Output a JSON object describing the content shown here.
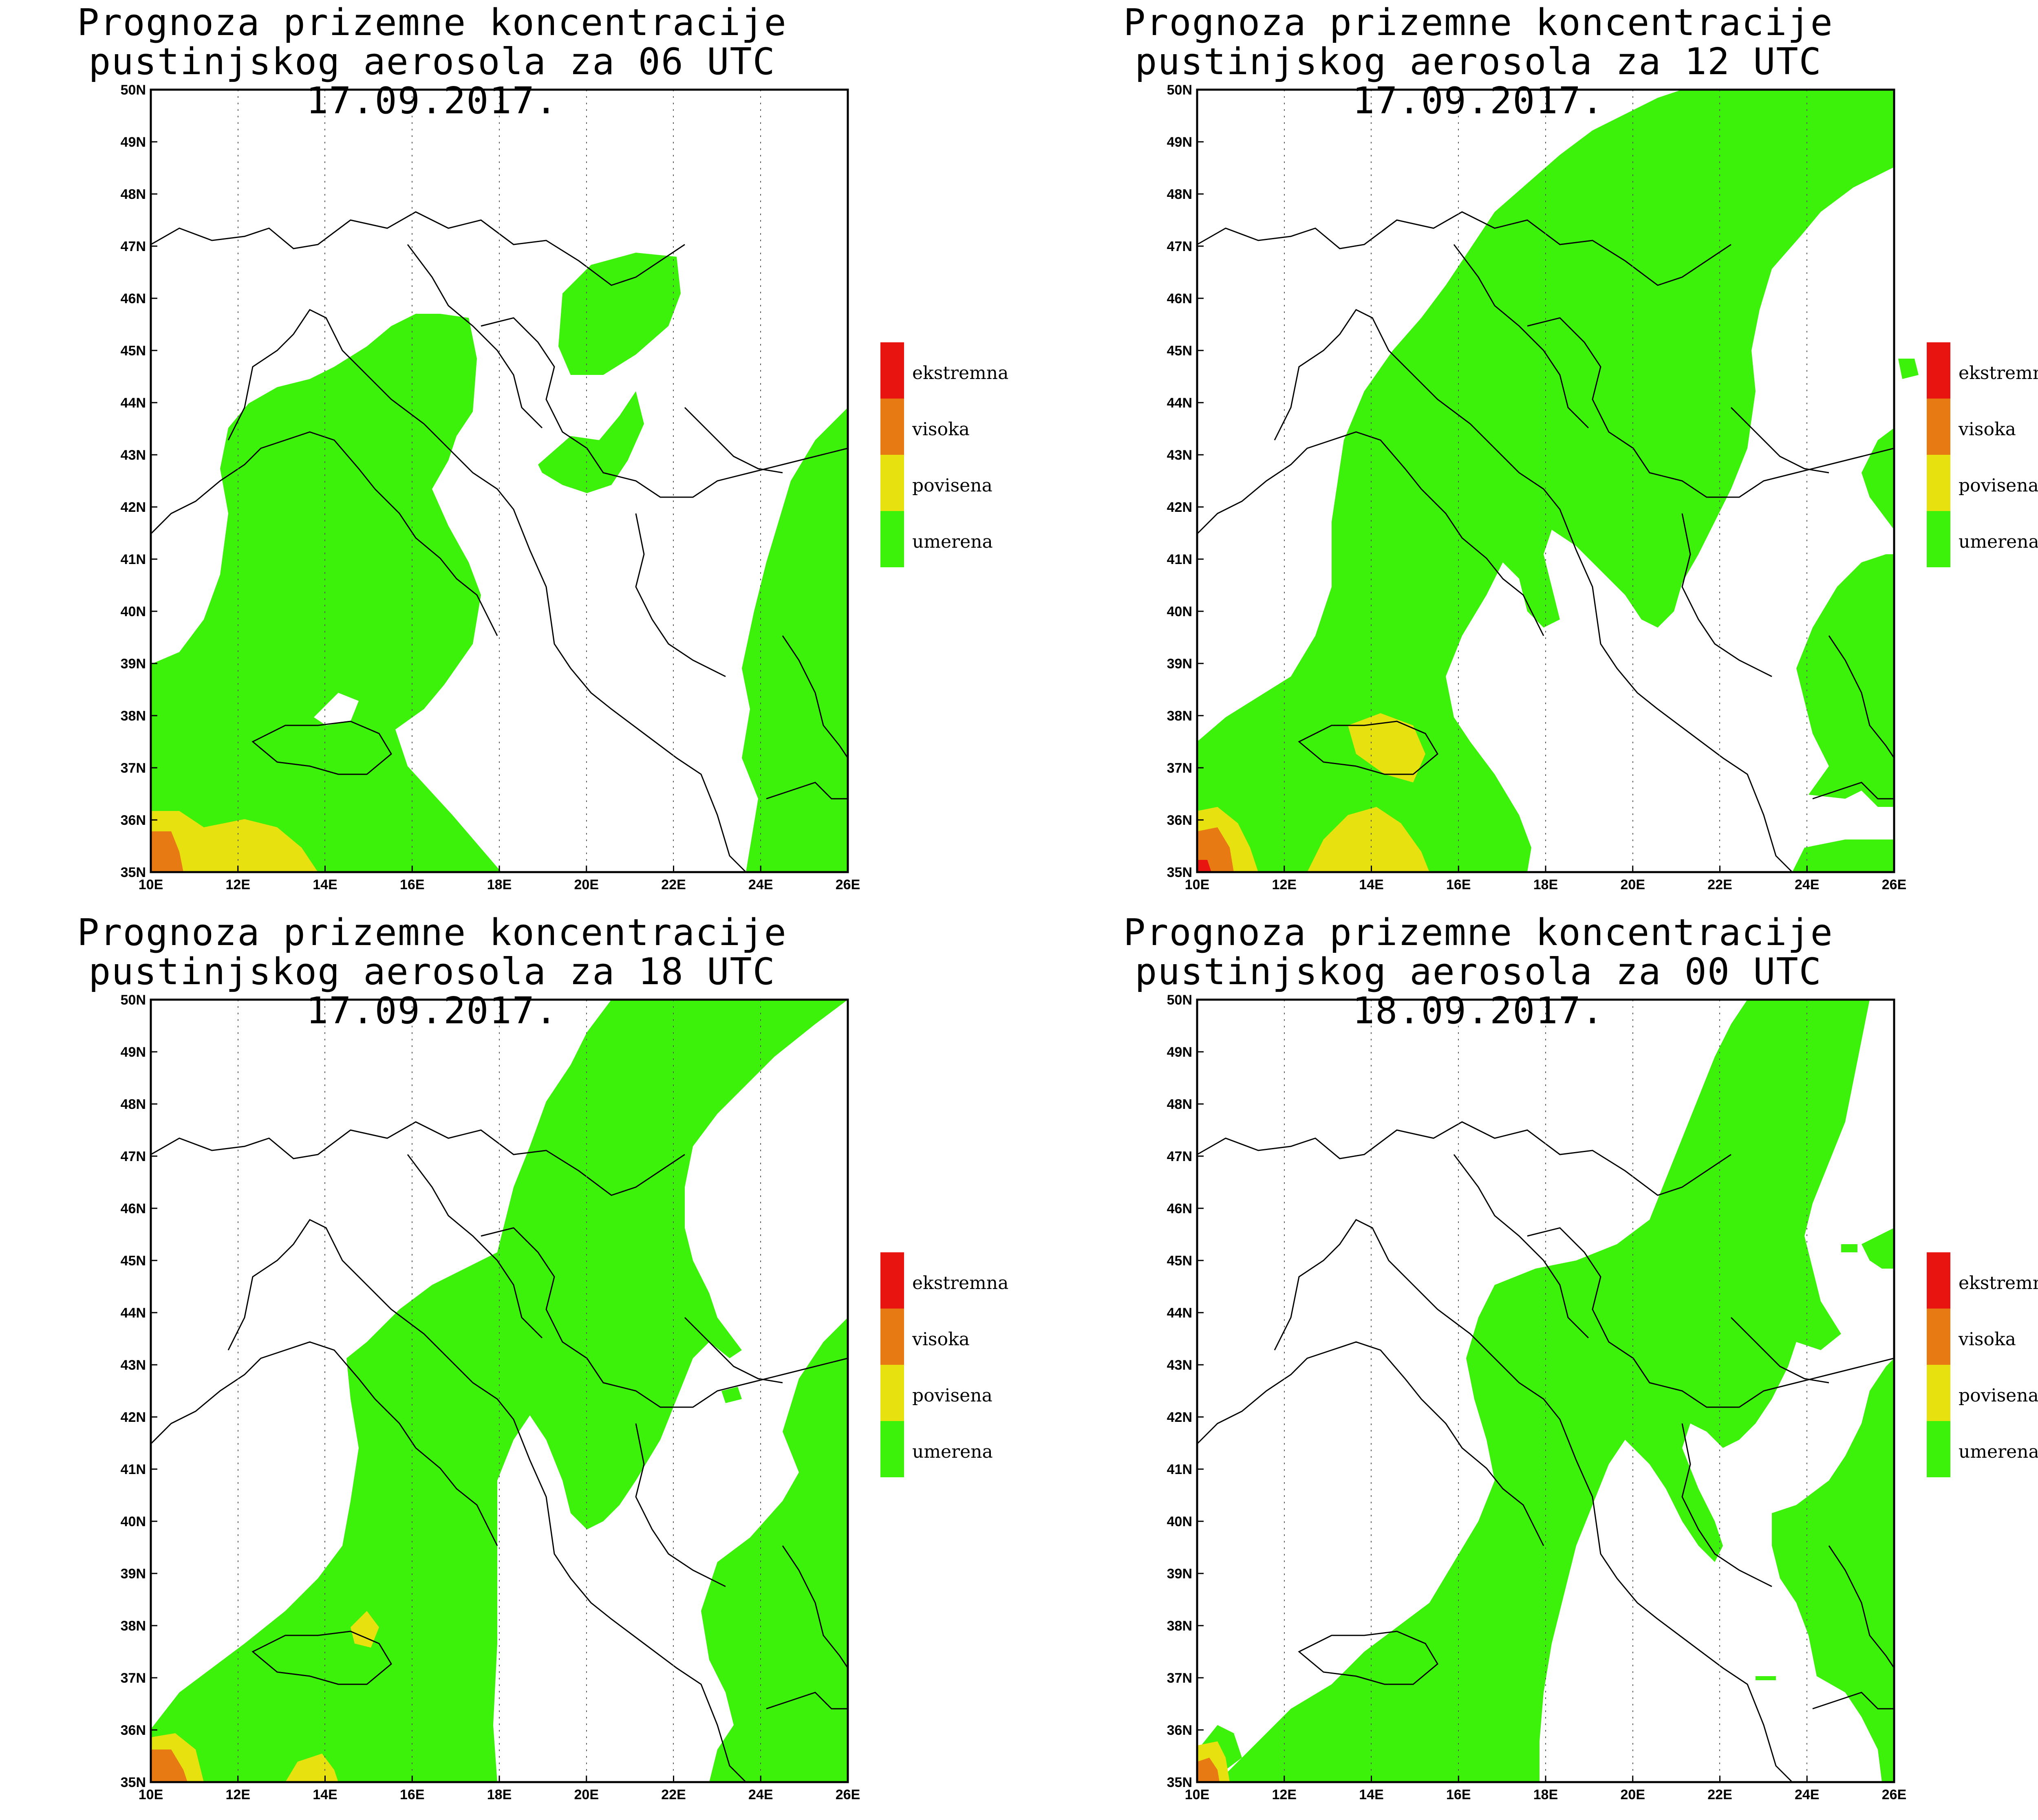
{
  "map_data": {
    "title_line1": "Prognoza prizemne koncentracije",
    "x_ticks": [
      "10E",
      "12E",
      "14E",
      "16E",
      "18E",
      "20E",
      "22E",
      "24E",
      "26E"
    ],
    "y_ticks": [
      "35N",
      "36N",
      "37N",
      "38N",
      "39N",
      "40N",
      "41N",
      "42N",
      "43N",
      "44N",
      "45N",
      "46N",
      "47N",
      "48N",
      "49N",
      "50N"
    ],
    "legend": [
      {
        "label": "ekstremna",
        "color": "#e8140f"
      },
      {
        "label": "visoka",
        "color": "#e87a14"
      },
      {
        "label": "povisena",
        "color": "#e6e10f"
      },
      {
        "label": "umerena",
        "color": "#3cf20a"
      }
    ],
    "colors": {
      "white": "#ffffff",
      "green": "#3cf20a",
      "yellow": "#e6e10f",
      "orange": "#e87a14",
      "red": "#e8140f",
      "border": "#000000",
      "grid": "#555555"
    },
    "panels": [
      {
        "title_line2": "pustinjskog aerosola za 06 UTC 17.09.2017."
      },
      {
        "title_line2": "pustinjskog aerosola za 12 UTC 17.09.2017."
      },
      {
        "title_line2": "pustinjskog aerosola za 18 UTC 17.09.2017."
      },
      {
        "title_line2": "pustinjskog aerosola za 00 UTC 18.09.2017."
      }
    ]
  }
}
